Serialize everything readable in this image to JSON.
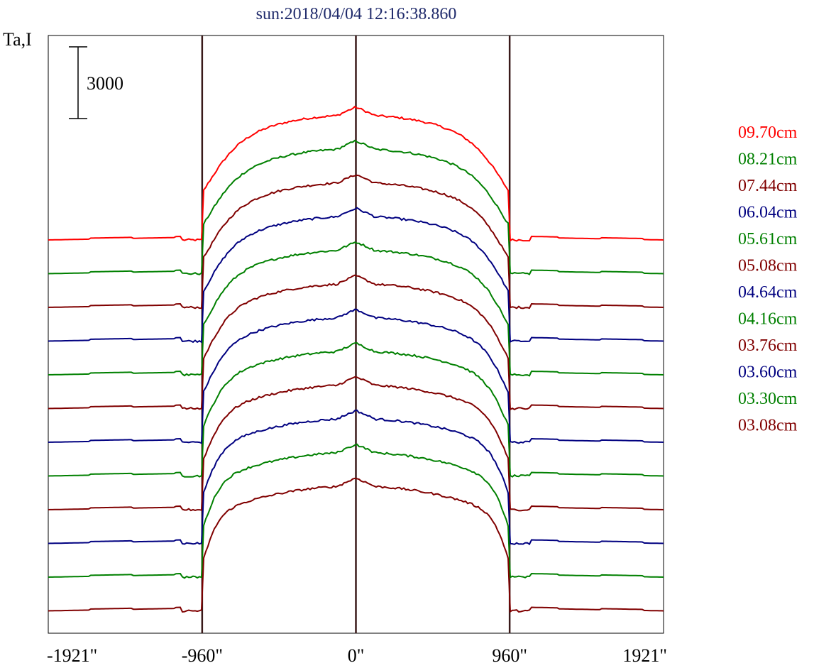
{
  "chart_data": {
    "type": "line",
    "title": "sun:2018/04/04 12:16:38.860",
    "ylabel": "Ta,I",
    "scale_bar_label": "3000",
    "xlim": [
      -1921,
      1921
    ],
    "x_ticks": [
      {
        "value": -1921,
        "label": "-1921\""
      },
      {
        "value": -960,
        "label": "-960\""
      },
      {
        "value": 0,
        "label": "0\""
      },
      {
        "value": 960,
        "label": "960\""
      },
      {
        "value": 1921,
        "label": "1921\""
      }
    ],
    "reference_lines": [
      -960,
      0,
      960
    ],
    "colors": {
      "axis": "#000000",
      "reference_line": "#3a1a1a",
      "title": "#1f2a6b"
    },
    "series": [
      {
        "name": "09.70cm",
        "color": "#ff0000",
        "offset_index": 0
      },
      {
        "name": "08.21cm",
        "color": "#008000",
        "offset_index": 1
      },
      {
        "name": "07.44cm",
        "color": "#800000",
        "offset_index": 2
      },
      {
        "name": "06.04cm",
        "color": "#000080",
        "offset_index": 3
      },
      {
        "name": "05.61cm",
        "color": "#008000",
        "offset_index": 4
      },
      {
        "name": "05.08cm",
        "color": "#800000",
        "offset_index": 5
      },
      {
        "name": "04.64cm",
        "color": "#000080",
        "offset_index": 6
      },
      {
        "name": "04.16cm",
        "color": "#008000",
        "offset_index": 7
      },
      {
        "name": "03.76cm",
        "color": "#800000",
        "offset_index": 8
      },
      {
        "name": "03.60cm",
        "color": "#000080",
        "offset_index": 9
      },
      {
        "name": "03.30cm",
        "color": "#008000",
        "offset_index": 10
      },
      {
        "name": "03.08cm",
        "color": "#800000",
        "offset_index": 11
      }
    ],
    "grid": false,
    "legend_position": "right"
  }
}
